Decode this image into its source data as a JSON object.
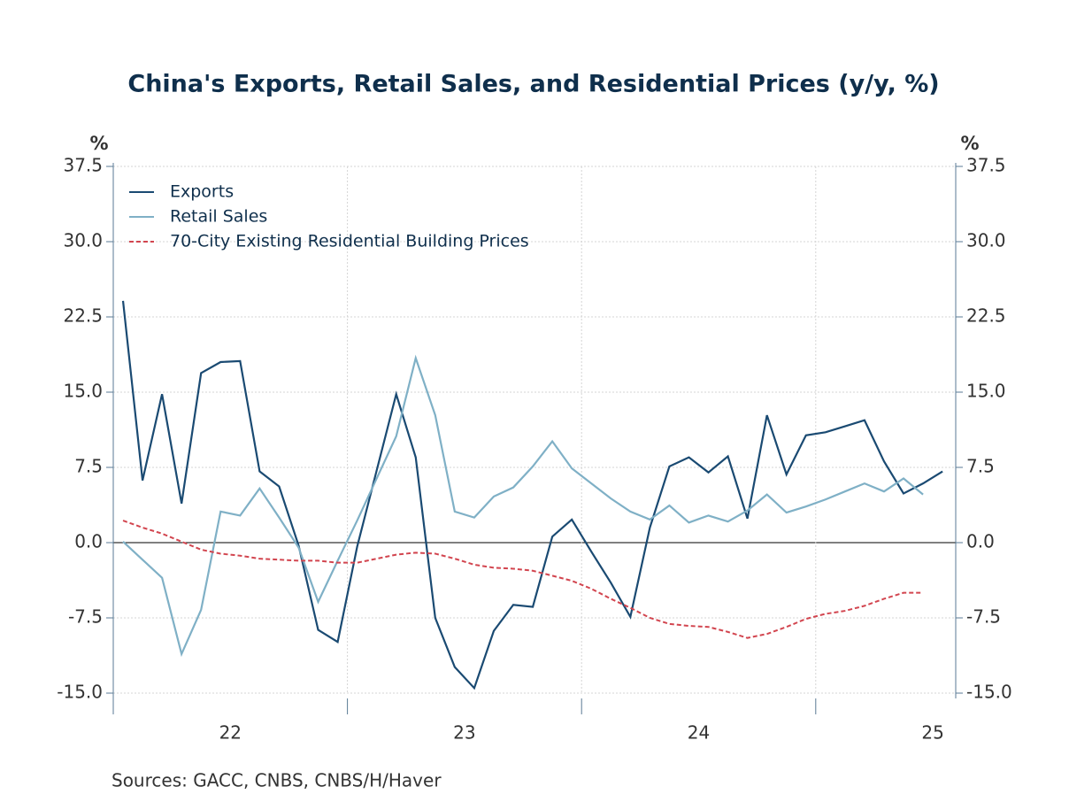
{
  "chart_data": {
    "type": "line",
    "title": "China's Exports, Retail Sales, and Residential Prices (y/y, %)",
    "ylabel": "%",
    "y2label": "%",
    "source": "Sources:  GACC, CNBS, CNBS/H/Haver",
    "categories": [
      null,
      null,
      null,
      null,
      null,
      null,
      "22",
      null,
      null,
      null,
      null,
      null,
      null,
      null,
      null,
      null,
      null,
      null,
      "23",
      null,
      null,
      null,
      null,
      null,
      null,
      null,
      null,
      null,
      null,
      null,
      "24",
      null,
      null,
      null,
      null,
      null,
      null,
      null,
      null,
      null,
      null,
      null,
      "25"
    ],
    "ylim": [
      -15,
      37.5
    ],
    "yticks": [
      {
        "value": -15,
        "label": "-15.0"
      },
      -7.5,
      {
        "value": 0,
        "label": "0.0"
      },
      7.5,
      {
        "value": 15,
        "label": "15.0"
      },
      22.5,
      {
        "value": 30,
        "label": "30.0"
      },
      37.5
    ],
    "grid": true,
    "legend": "upper left",
    "series": [
      {
        "name": "Exports",
        "color": "#1a4a72",
        "dash": false,
        "values": [
          24.1,
          6.2,
          14.8,
          3.9,
          16.9,
          18.0,
          18.1,
          7.1,
          5.6,
          -0.3,
          -8.7,
          -9.9,
          -0.4,
          7.2,
          14.8,
          8.5,
          -7.5,
          -12.4,
          -14.5,
          -8.8,
          -6.2,
          -6.4,
          0.6,
          2.3,
          -0.9,
          -4.0,
          -7.4,
          1.5,
          7.6,
          8.5,
          7.0,
          8.6,
          2.4,
          12.7,
          6.8,
          10.7,
          11.0,
          11.6,
          12.2,
          8.1,
          4.9,
          5.9,
          7.1
        ]
      },
      {
        "name": "Retail Sales",
        "color": "#7fb0c6",
        "dash": false,
        "values": [
          0.1,
          -1.7,
          -3.5,
          -11.1,
          -6.7,
          3.1,
          2.7,
          5.4,
          2.5,
          -0.5,
          -5.9,
          -1.8,
          2.2,
          6.4,
          10.6,
          18.4,
          12.7,
          3.1,
          2.5,
          4.6,
          5.5,
          7.6,
          10.1,
          7.4,
          5.9,
          4.4,
          3.1,
          2.3,
          3.7,
          2.0,
          2.7,
          2.1,
          3.2,
          4.8,
          3.0,
          3.6,
          4.3,
          5.1,
          5.9,
          5.1,
          6.4,
          4.8,
          null
        ]
      },
      {
        "name": "70-City Existing Residential Building Prices",
        "color": "#d2454f",
        "dash": true,
        "values": [
          2.2,
          1.5,
          0.9,
          0.1,
          -0.7,
          -1.1,
          -1.3,
          -1.6,
          -1.7,
          -1.8,
          -1.8,
          -2.0,
          -2.0,
          -1.6,
          -1.2,
          -1.0,
          -1.1,
          -1.6,
          -2.2,
          -2.5,
          -2.6,
          -2.8,
          -3.3,
          -3.8,
          -4.6,
          -5.6,
          -6.5,
          -7.5,
          -8.1,
          -8.3,
          -8.4,
          -8.9,
          -9.5,
          -9.1,
          -8.4,
          -7.6,
          -7.1,
          -6.8,
          -6.3,
          -5.6,
          -5.0,
          -5.0,
          null
        ]
      }
    ]
  }
}
